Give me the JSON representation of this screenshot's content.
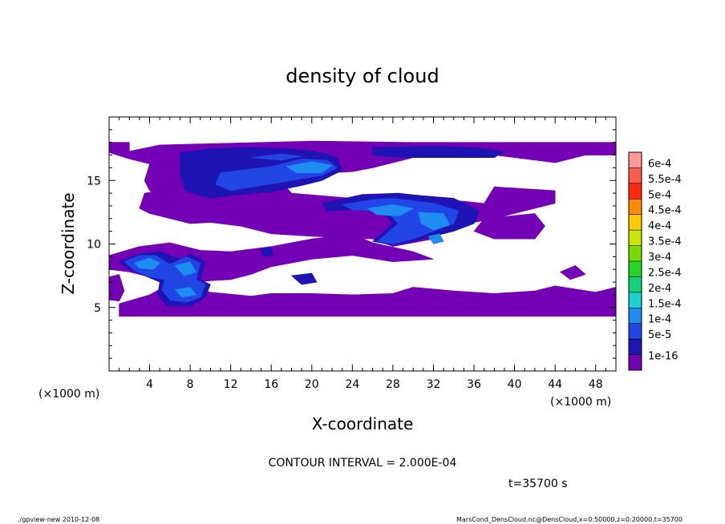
{
  "chart_data": {
    "type": "heatmap",
    "title": "density of cloud",
    "xlabel": "X-coordinate",
    "ylabel": "Z-coordinate",
    "x_unit_left": "(×1000 m)",
    "x_unit_right": "(×1000 m)",
    "xlim": [
      0,
      50
    ],
    "ylim": [
      0,
      20
    ],
    "x_ticks": [
      4,
      8,
      12,
      16,
      20,
      24,
      28,
      32,
      36,
      40,
      44,
      48
    ],
    "y_ticks": [
      5,
      10,
      15
    ],
    "colorbar": {
      "labels": [
        "6e-4",
        "5.5e-4",
        "5e-4",
        "4.5e-4",
        "4e-4",
        "3.5e-4",
        "3e-4",
        "2.5e-4",
        "2e-4",
        "1.5e-4",
        "1e-4",
        "5e-5",
        "1e-16"
      ],
      "colors": [
        "#ff9999",
        "#ff5a4a",
        "#ff2a10",
        "#ff8a00",
        "#ffc800",
        "#c8e600",
        "#78dc00",
        "#22d822",
        "#14d27a",
        "#1ed2d2",
        "#1e8cf0",
        "#2246e6",
        "#1e14b4",
        "#7300b4"
      ]
    },
    "regions": [
      {
        "level": 0,
        "polygons": [
          [
            [
              0,
              18
            ],
            [
              2,
              18
            ],
            [
              2,
              17.3
            ],
            [
              5,
              17.8
            ],
            [
              10,
              17.9
            ],
            [
              20,
              18.1
            ],
            [
              30,
              18
            ],
            [
              40,
              18
            ],
            [
              50,
              18
            ],
            [
              50,
              17
            ],
            [
              47,
              17
            ],
            [
              44,
              16.4
            ],
            [
              40,
              16.8
            ],
            [
              36,
              17.2
            ],
            [
              30,
              16.8
            ],
            [
              26,
              16
            ],
            [
              24,
              15.7
            ],
            [
              20,
              15.5
            ],
            [
              16,
              15.3
            ],
            [
              14,
              14.6
            ],
            [
              10,
              14
            ],
            [
              8,
              13.4
            ],
            [
              6,
              13.2
            ],
            [
              4,
              14.2
            ],
            [
              3.5,
              15
            ],
            [
              4,
              16.3
            ],
            [
              2,
              16.7
            ],
            [
              0,
              17.2
            ]
          ],
          [
            [
              3.5,
              14
            ],
            [
              7,
              14.4
            ],
            [
              12,
              15.4
            ],
            [
              16,
              15.8
            ],
            [
              18,
              14
            ],
            [
              24,
              13.6
            ],
            [
              28,
              13.8
            ],
            [
              32,
              13.6
            ],
            [
              37,
              13.2
            ],
            [
              38,
              14.5
            ],
            [
              44,
              14.2
            ],
            [
              44,
              13.2
            ],
            [
              38,
              12
            ],
            [
              34,
              11.4
            ],
            [
              32,
              10.4
            ],
            [
              28,
              9.8
            ],
            [
              26,
              10.4
            ],
            [
              20,
              10.6
            ],
            [
              16,
              10.8
            ],
            [
              13,
              11.4
            ],
            [
              10,
              11.7
            ],
            [
              8,
              11.6
            ],
            [
              4,
              12.4
            ],
            [
              3,
              12.8
            ]
          ],
          [
            [
              0,
              9.1
            ],
            [
              3,
              9.8
            ],
            [
              6,
              10.1
            ],
            [
              9,
              9.5
            ],
            [
              12,
              9.4
            ],
            [
              16,
              9.8
            ],
            [
              20,
              10.4
            ],
            [
              24,
              10.8
            ],
            [
              26,
              10.1
            ],
            [
              30,
              9.4
            ],
            [
              32,
              8.8
            ],
            [
              28,
              8.6
            ],
            [
              24,
              9.1
            ],
            [
              20,
              8.8
            ],
            [
              16,
              8.2
            ],
            [
              14,
              7.6
            ],
            [
              12,
              7.2
            ],
            [
              10,
              7.1
            ],
            [
              8,
              7
            ],
            [
              6,
              7.1
            ],
            [
              4,
              7.4
            ],
            [
              2,
              7.8
            ],
            [
              0,
              8
            ]
          ],
          [
            [
              1,
              5.3
            ],
            [
              4,
              6
            ],
            [
              7,
              7.3
            ],
            [
              8,
              6.6
            ],
            [
              10,
              6.2
            ],
            [
              14,
              5.9
            ],
            [
              16,
              6.1
            ],
            [
              20,
              6.1
            ],
            [
              24,
              6
            ],
            [
              28,
              6.1
            ],
            [
              30,
              6.6
            ],
            [
              34,
              6.3
            ],
            [
              38,
              6.1
            ],
            [
              42,
              6.3
            ],
            [
              44,
              6.7
            ],
            [
              48,
              6.2
            ],
            [
              50,
              6.6
            ],
            [
              50,
              4.3
            ],
            [
              48,
              4.3
            ],
            [
              40,
              4.3
            ],
            [
              30,
              4.3
            ],
            [
              20,
              4.3
            ],
            [
              10,
              4.3
            ],
            [
              1,
              4.3
            ]
          ],
          [
            [
              0,
              7.4
            ],
            [
              1,
              7.6
            ],
            [
              1.5,
              6.3
            ],
            [
              1,
              5.5
            ],
            [
              0,
              5.6
            ]
          ],
          [
            [
              44.5,
              7.8
            ],
            [
              46,
              8.3
            ],
            [
              47,
              7.6
            ],
            [
              45.5,
              7.2
            ]
          ],
          [
            [
              37,
              12
            ],
            [
              42,
              12.4
            ],
            [
              43,
              11.4
            ],
            [
              42,
              10.4
            ],
            [
              38,
              10.4
            ],
            [
              36,
              11
            ]
          ]
        ]
      },
      {
        "level": 1,
        "polygons": [
          [
            [
              7,
              17.2
            ],
            [
              10,
              17.5
            ],
            [
              14,
              17.6
            ],
            [
              18,
              17.5
            ],
            [
              21,
              17.2
            ],
            [
              22.5,
              16.8
            ],
            [
              23,
              15.8
            ],
            [
              21,
              15
            ],
            [
              19,
              14.6
            ],
            [
              16,
              14.1
            ],
            [
              13,
              13.9
            ],
            [
              10,
              13.6
            ],
            [
              7.5,
              14.2
            ],
            [
              7,
              15.5
            ]
          ],
          [
            [
              26,
              17.6
            ],
            [
              32,
              17.7
            ],
            [
              36,
              17.6
            ],
            [
              39,
              17.3
            ],
            [
              38,
              16.8
            ],
            [
              34,
              16.8
            ],
            [
              29,
              16.8
            ],
            [
              26,
              17
            ]
          ],
          [
            [
              21,
              13.2
            ],
            [
              25,
              13.9
            ],
            [
              28.5,
              14
            ],
            [
              31,
              13.8
            ],
            [
              34,
              13.6
            ],
            [
              36.5,
              12.6
            ],
            [
              36,
              11.6
            ],
            [
              34,
              11
            ],
            [
              32,
              10.6
            ],
            [
              30,
              10.2
            ],
            [
              28,
              9.9
            ],
            [
              26,
              10.2
            ],
            [
              28,
              11.6
            ],
            [
              27,
              12.5
            ],
            [
              24,
              12.7
            ],
            [
              21.5,
              12.6
            ]
          ],
          [
            [
              1,
              8.6
            ],
            [
              3,
              9.2
            ],
            [
              5,
              9.4
            ],
            [
              7,
              8.8
            ],
            [
              8,
              9.2
            ],
            [
              9.5,
              8.6
            ],
            [
              9,
              7.2
            ],
            [
              10,
              6.8
            ],
            [
              9.5,
              5.8
            ],
            [
              8,
              5.1
            ],
            [
              5.8,
              5.1
            ],
            [
              4.8,
              6
            ],
            [
              5,
              7
            ],
            [
              3.5,
              7.5
            ],
            [
              2,
              8
            ]
          ],
          [
            [
              18,
              7.5
            ],
            [
              20,
              7.7
            ],
            [
              20.5,
              7
            ],
            [
              19,
              6.8
            ]
          ],
          [
            [
              15,
              9.6
            ],
            [
              16,
              9.8
            ],
            [
              16.2,
              9.1
            ],
            [
              15.2,
              9
            ]
          ]
        ]
      },
      {
        "level": 2,
        "polygons": [
          [
            [
              11,
              15.6
            ],
            [
              16,
              16.1
            ],
            [
              19,
              16.7
            ],
            [
              21.5,
              16.6
            ],
            [
              22.5,
              16
            ],
            [
              21,
              15.4
            ],
            [
              18,
              15
            ],
            [
              15,
              14.6
            ],
            [
              12,
              14.2
            ],
            [
              10.5,
              14.7
            ]
          ],
          [
            [
              14,
              16.8
            ],
            [
              17,
              17.1
            ],
            [
              19,
              16.9
            ],
            [
              17,
              16.6
            ]
          ],
          [
            [
              23,
              13.1
            ],
            [
              26,
              13.5
            ],
            [
              28,
              13.6
            ],
            [
              30,
              13.4
            ],
            [
              32,
              13.2
            ],
            [
              34.5,
              12.6
            ],
            [
              34,
              11.6
            ],
            [
              32,
              11
            ],
            [
              30,
              10.4
            ],
            [
              28,
              10
            ],
            [
              26.5,
              10.2
            ],
            [
              28.5,
              11.6
            ],
            [
              27.5,
              12.5
            ],
            [
              24,
              12.7
            ]
          ],
          [
            [
              1.5,
              8.6
            ],
            [
              3,
              9.1
            ],
            [
              4.6,
              9.1
            ],
            [
              6,
              8.4
            ],
            [
              7.6,
              9
            ],
            [
              9,
              8.5
            ],
            [
              8.6,
              7.2
            ],
            [
              9.5,
              6.8
            ],
            [
              9,
              5.8
            ],
            [
              7.6,
              5.4
            ],
            [
              6,
              5.6
            ],
            [
              5.2,
              6.4
            ],
            [
              5.5,
              7.2
            ],
            [
              4,
              7.4
            ],
            [
              2.5,
              7.9
            ]
          ]
        ]
      },
      {
        "level": 3,
        "polygons": [
          [
            [
              17.5,
              16.1
            ],
            [
              20,
              16.5
            ],
            [
              22,
              16.2
            ],
            [
              21,
              15.6
            ],
            [
              18.5,
              15.6
            ]
          ],
          [
            [
              25.5,
              12.8
            ],
            [
              28,
              13.1
            ],
            [
              30,
              12.8
            ],
            [
              28.6,
              12.2
            ],
            [
              26.4,
              12.3
            ]
          ],
          [
            [
              30.5,
              12.5
            ],
            [
              33,
              12.4
            ],
            [
              33.6,
              11.5
            ],
            [
              32,
              11.1
            ],
            [
              30.8,
              11.6
            ]
          ],
          [
            [
              2.5,
              8.5
            ],
            [
              4,
              8.9
            ],
            [
              5,
              8.5
            ],
            [
              4.4,
              8
            ],
            [
              3,
              8.1
            ]
          ],
          [
            [
              6.5,
              8.3
            ],
            [
              8,
              8.6
            ],
            [
              8.6,
              7.8
            ],
            [
              7.4,
              7.5
            ]
          ],
          [
            [
              6.5,
              6.4
            ],
            [
              8,
              6.6
            ],
            [
              8.6,
              6
            ],
            [
              7.2,
              5.8
            ]
          ],
          [
            [
              31.5,
              10.6
            ],
            [
              32.6,
              10.8
            ],
            [
              33,
              10.2
            ],
            [
              32,
              10
            ]
          ]
        ]
      }
    ]
  },
  "contour_interval": "CONTOUR INTERVAL = 2.000E-04",
  "time_label": "t=35700  s",
  "footer_left": "./gpview-new   2010-12-08",
  "footer_right": "MarsCond_DensCloud.nc@DensCloud,x=0:50000,z=0:20000,t=35700"
}
